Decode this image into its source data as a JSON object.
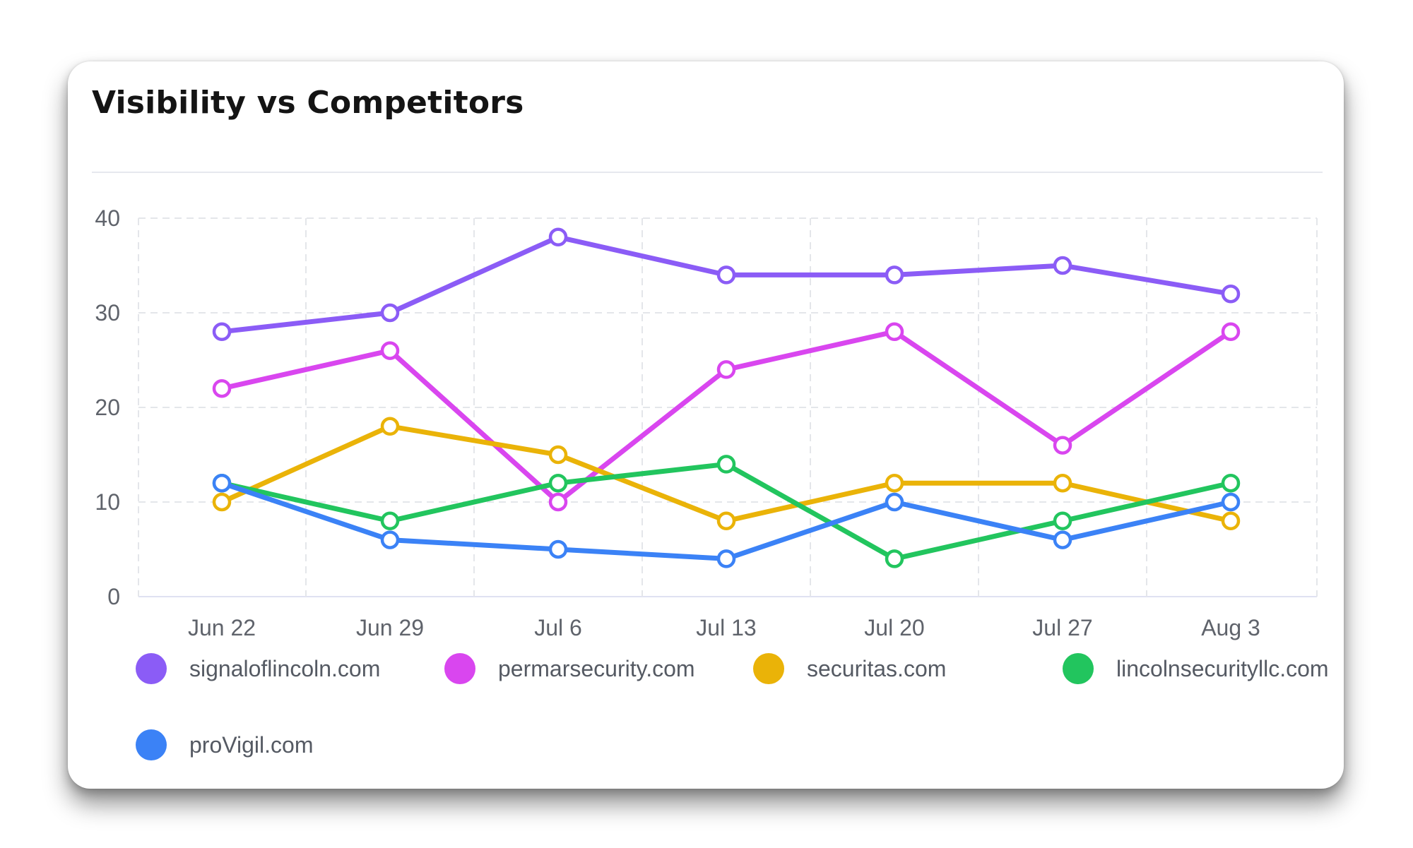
{
  "card": {
    "title": "Visibility vs Competitors"
  },
  "chart_data": {
    "type": "line",
    "title": "Visibility vs Competitors",
    "xlabel": "",
    "ylabel": "",
    "categories": [
      "Jun 22",
      "Jun 29",
      "Jul 6",
      "Jul 13",
      "Jul 20",
      "Jul 27",
      "Aug 3"
    ],
    "yticks": [
      0,
      10,
      20,
      30,
      40
    ],
    "ylim": [
      0,
      40
    ],
    "grid": true,
    "legend_position": "bottom",
    "series": [
      {
        "name": "signaloflincoln.com",
        "color": "#8b5cf6",
        "values": [
          28,
          30,
          38,
          34,
          34,
          35,
          32
        ]
      },
      {
        "name": "permarsecurity.com",
        "color": "#d946ef",
        "values": [
          22,
          26,
          10,
          24,
          28,
          16,
          28
        ]
      },
      {
        "name": "securitas.com",
        "color": "#eab308",
        "values": [
          10,
          18,
          15,
          8,
          12,
          12,
          8
        ]
      },
      {
        "name": "lincolnsecurityllc.com",
        "color": "#22c55e",
        "values": [
          12,
          8,
          12,
          14,
          4,
          8,
          12
        ]
      },
      {
        "name": "proVigil.com",
        "color": "#3b82f6",
        "values": [
          12,
          6,
          5,
          4,
          10,
          6,
          10
        ]
      }
    ]
  }
}
